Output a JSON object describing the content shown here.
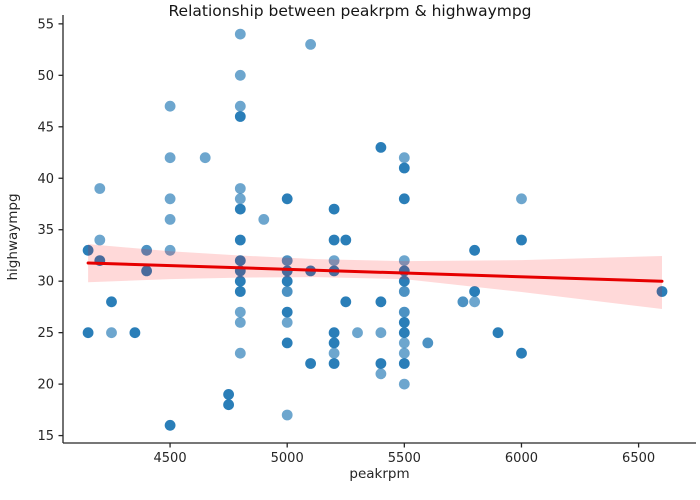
{
  "title": "Relationship between peakrpm & highwaympg",
  "x_axis": {
    "label": "peakrpm",
    "ticks": [
      4500,
      5000,
      5500,
      6000,
      6500
    ]
  },
  "y_axis": {
    "label": "highwaympg",
    "ticks": [
      15,
      20,
      25,
      30,
      35,
      40,
      45,
      50,
      55
    ]
  },
  "colors": {
    "dot": "#1f77b4",
    "regression_line": "#e60000",
    "confidence_band": "#ff0000",
    "band_alpha": 0.15,
    "spine": "#262626",
    "text": "#262626",
    "background": "#ffffff"
  },
  "chart_data": {
    "type": "scatter",
    "title": "Relationship between peakrpm & highwaympg",
    "xlabel": "peakrpm",
    "ylabel": "highwaympg",
    "xlim": [
      4043,
      6745
    ],
    "ylim": [
      14.28,
      55.86
    ],
    "grid": false,
    "legend": false,
    "point_note": "each point is [peakrpm, highwaympg, overlap-shade l|m|d]; darker dots = overlapping observations",
    "points": [
      [
        4150,
        33,
        "d"
      ],
      [
        4150,
        25,
        "d"
      ],
      [
        4200,
        39,
        "l"
      ],
      [
        4200,
        34,
        "l"
      ],
      [
        4200,
        32,
        "d"
      ],
      [
        4250,
        28,
        "d"
      ],
      [
        4250,
        25,
        "l"
      ],
      [
        4350,
        25,
        "d"
      ],
      [
        4400,
        33,
        "m"
      ],
      [
        4400,
        31,
        "d"
      ],
      [
        4500,
        47,
        "l"
      ],
      [
        4500,
        42,
        "l"
      ],
      [
        4500,
        38,
        "l"
      ],
      [
        4500,
        36,
        "l"
      ],
      [
        4500,
        33,
        "l"
      ],
      [
        4500,
        16,
        "d"
      ],
      [
        4650,
        42,
        "l"
      ],
      [
        4750,
        19,
        "d"
      ],
      [
        4750,
        18,
        "d"
      ],
      [
        4800,
        54,
        "l"
      ],
      [
        4800,
        50,
        "l"
      ],
      [
        4800,
        47,
        "l"
      ],
      [
        4800,
        46,
        "d"
      ],
      [
        4800,
        39,
        "l"
      ],
      [
        4800,
        38,
        "l"
      ],
      [
        4800,
        37,
        "d"
      ],
      [
        4800,
        34,
        "d"
      ],
      [
        4800,
        32,
        "d"
      ],
      [
        4800,
        31,
        "d"
      ],
      [
        4800,
        30,
        "d"
      ],
      [
        4800,
        29,
        "d"
      ],
      [
        4800,
        27,
        "l"
      ],
      [
        4800,
        26,
        "l"
      ],
      [
        4800,
        23,
        "l"
      ],
      [
        4900,
        36,
        "l"
      ],
      [
        5000,
        38,
        "d"
      ],
      [
        5000,
        32,
        "m"
      ],
      [
        5000,
        31,
        "d"
      ],
      [
        5000,
        30,
        "d"
      ],
      [
        5000,
        29,
        "m"
      ],
      [
        5000,
        27,
        "d"
      ],
      [
        5000,
        26,
        "l"
      ],
      [
        5000,
        24,
        "d"
      ],
      [
        5000,
        17,
        "l"
      ],
      [
        5100,
        53,
        "l"
      ],
      [
        5100,
        31,
        "d"
      ],
      [
        5100,
        22,
        "d"
      ],
      [
        5200,
        37,
        "d"
      ],
      [
        5200,
        34,
        "d"
      ],
      [
        5200,
        32,
        "l"
      ],
      [
        5200,
        31,
        "d"
      ],
      [
        5200,
        25,
        "d"
      ],
      [
        5200,
        24,
        "d"
      ],
      [
        5200,
        23,
        "l"
      ],
      [
        5200,
        22,
        "d"
      ],
      [
        5250,
        34,
        "d"
      ],
      [
        5250,
        28,
        "d"
      ],
      [
        5300,
        25,
        "l"
      ],
      [
        5400,
        43,
        "d"
      ],
      [
        5400,
        28,
        "d"
      ],
      [
        5400,
        25,
        "l"
      ],
      [
        5400,
        22,
        "d"
      ],
      [
        5400,
        21,
        "l"
      ],
      [
        5500,
        42,
        "l"
      ],
      [
        5500,
        41,
        "d"
      ],
      [
        5500,
        38,
        "d"
      ],
      [
        5500,
        32,
        "l"
      ],
      [
        5500,
        31,
        "d"
      ],
      [
        5500,
        30,
        "d"
      ],
      [
        5500,
        29,
        "m"
      ],
      [
        5500,
        27,
        "m"
      ],
      [
        5500,
        26,
        "d"
      ],
      [
        5500,
        25,
        "d"
      ],
      [
        5500,
        24,
        "l"
      ],
      [
        5500,
        23,
        "l"
      ],
      [
        5500,
        22,
        "d"
      ],
      [
        5500,
        20,
        "l"
      ],
      [
        5600,
        24,
        "m"
      ],
      [
        5750,
        28,
        "m"
      ],
      [
        5800,
        33,
        "d"
      ],
      [
        5800,
        29,
        "d"
      ],
      [
        5800,
        28,
        "l"
      ],
      [
        5900,
        25,
        "d"
      ],
      [
        6000,
        38,
        "l"
      ],
      [
        6000,
        34,
        "d"
      ],
      [
        6000,
        23,
        "d"
      ],
      [
        6600,
        29,
        "d"
      ]
    ],
    "regression_line": {
      "x": [
        4150,
        6600
      ],
      "y": [
        31.77,
        30.0
      ]
    },
    "confidence_band": {
      "x": [
        4150,
        4500,
        4800,
        5125,
        5500,
        6000,
        6600
      ],
      "top": [
        33.6,
        32.9,
        32.5,
        32.15,
        31.95,
        32.05,
        32.45
      ],
      "bottom": [
        29.9,
        30.2,
        30.35,
        30.4,
        30.2,
        28.95,
        27.3
      ]
    }
  }
}
